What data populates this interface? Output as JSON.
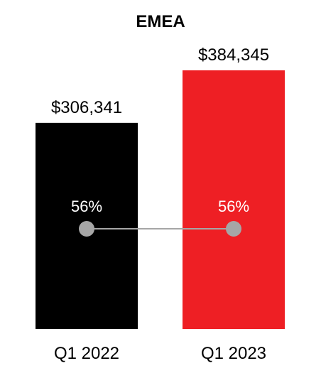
{
  "chart_data": {
    "type": "bar",
    "title": "EMEA",
    "categories": [
      "Q1 2022",
      "Q1 2023"
    ],
    "series": [
      {
        "values": [
          306341,
          384345
        ],
        "data_labels": [
          "$306,341",
          "$384,345"
        ],
        "colors": [
          "#000000",
          "#ee1f24"
        ]
      },
      {
        "type": "line",
        "values": [
          56,
          56
        ],
        "unit": "%",
        "data_labels": [
          "56%",
          "56%"
        ],
        "marker_color": "#a6a6a6",
        "line_color": "#a6a6a6"
      }
    ],
    "xlabel": "",
    "ylabel": "",
    "grid": false,
    "legend": "none"
  }
}
